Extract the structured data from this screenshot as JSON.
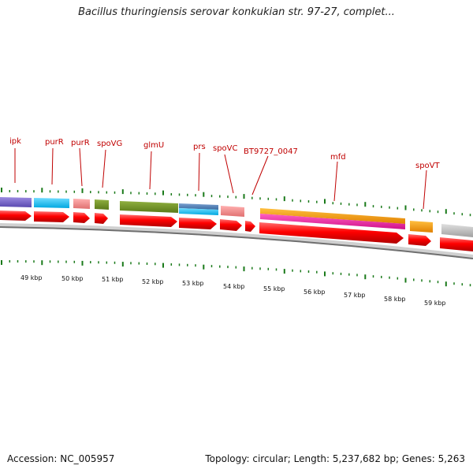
{
  "title": "Bacillus thuringiensis serovar konkukian str. 97-27, complet...",
  "accession": "Accession: NC_005957",
  "summary": "Topology: circular; Length: 5,237,682 bp; Genes: 5,263",
  "colors": {
    "gene_label": "#c00000",
    "tick": "#1a7a1a",
    "strand_arrow": "#ff0000",
    "backbone": "#808080"
  },
  "gene_labels": [
    "ipk",
    "purR",
    "purR",
    "spoVG",
    "glmU",
    "prs",
    "spoVC",
    "BT9727_0047",
    "mfd",
    "spoVT"
  ],
  "kbp_labels": [
    "49 kbp",
    "50 kbp",
    "51 kbp",
    "52 kbp",
    "53 kbp",
    "54 kbp",
    "55 kbp",
    "56 kbp",
    "57 kbp",
    "58 kbp",
    "59 kbp"
  ]
}
